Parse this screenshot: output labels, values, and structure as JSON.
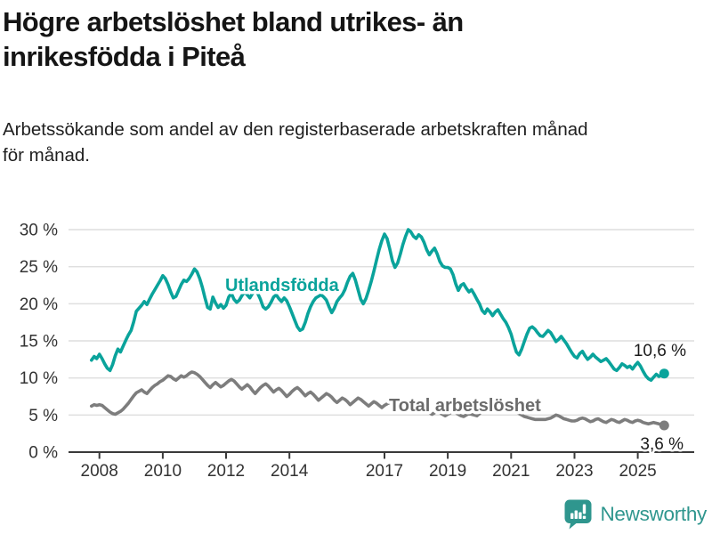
{
  "title": {
    "line1": "Högre arbetslöshet bland utrikes- än",
    "line2": "inrikesfödda i Piteå"
  },
  "subtitle": {
    "line1": "Arbetssökande som andel av den registerbaserade arbetskraften månad",
    "line2": "för månad."
  },
  "branding": {
    "name": "Newsworthy",
    "icon": "newsworthy-chart-bubble-icon",
    "color": "#2f968e"
  },
  "colors": {
    "foreign_born_line": "#0aa39b",
    "total_line": "#7d7d7d",
    "total_label": "#6b6b6b",
    "grid": "#dedede",
    "axis": "#3a3a3a",
    "tick_text": "#333333"
  },
  "chart_data": {
    "type": "line",
    "title": "Högre arbetslöshet bland utrikes- än inrikesfödda i Piteå",
    "subtitle": "Arbetssökande som andel av den registerbaserade arbetskraften månad för månad.",
    "xlabel": "",
    "ylabel": "",
    "grid": "horizontal",
    "ylim": [
      0,
      31
    ],
    "y_axis": {
      "ticks": [
        0,
        5,
        10,
        15,
        20,
        25,
        30
      ],
      "labels": [
        "0 %",
        "5 %",
        "10 %",
        "15 %",
        "20 %",
        "25 %",
        "30 %"
      ]
    },
    "x_axis": {
      "ticks": [
        2008,
        2010,
        2012,
        2014,
        2017,
        2019,
        2021,
        2023,
        2025
      ],
      "labels": [
        "2008",
        "2010",
        "2012",
        "2014",
        "2017",
        "2019",
        "2021",
        "2023",
        "2025"
      ],
      "unit": "year-month",
      "start": 2007.75,
      "end": 2025.9167
    },
    "series": [
      {
        "name": "Utlandsfödda",
        "color": "#0aa39b",
        "end_label": "10,6 %",
        "end_value": 10.6,
        "start": 2007.75,
        "step_years": 0.08333,
        "values": [
          12.4,
          12.9,
          12.6,
          13.2,
          12.6,
          11.9,
          11.3,
          11.0,
          11.8,
          13.0,
          13.9,
          13.5,
          14.3,
          15.1,
          15.8,
          16.4,
          17.6,
          19.0,
          19.4,
          19.8,
          20.3,
          19.9,
          20.6,
          21.3,
          21.9,
          22.5,
          23.1,
          23.8,
          23.4,
          22.6,
          21.6,
          20.8,
          21.0,
          21.8,
          22.6,
          23.2,
          23.0,
          23.4,
          24.0,
          24.7,
          24.3,
          23.4,
          22.2,
          20.8,
          19.5,
          19.3,
          20.9,
          20.1,
          19.5,
          19.9,
          19.4,
          19.8,
          20.9,
          21.4,
          20.6,
          20.2,
          20.5,
          21.1,
          21.6,
          21.2,
          20.8,
          21.4,
          21.8,
          21.4,
          20.6,
          19.6,
          19.3,
          19.6,
          20.2,
          20.9,
          21.2,
          20.7,
          20.3,
          20.8,
          20.4,
          19.6,
          18.7,
          17.8,
          16.9,
          16.4,
          16.6,
          17.5,
          18.7,
          19.6,
          20.3,
          20.8,
          21.0,
          21.2,
          20.9,
          20.5,
          19.6,
          18.8,
          19.4,
          20.3,
          20.8,
          21.2,
          21.9,
          22.9,
          23.7,
          24.1,
          23.2,
          21.9,
          20.6,
          20.0,
          20.7,
          21.8,
          23.0,
          24.4,
          25.9,
          27.3,
          28.5,
          29.4,
          28.8,
          27.4,
          25.8,
          24.9,
          25.5,
          26.7,
          28.0,
          29.1,
          30.0,
          29.7,
          29.1,
          28.8,
          29.3,
          29.0,
          28.3,
          27.3,
          26.6,
          27.1,
          27.5,
          26.7,
          25.7,
          25.1,
          24.9,
          24.9,
          24.7,
          23.9,
          22.7,
          21.8,
          22.5,
          22.7,
          22.1,
          21.6,
          21.9,
          21.3,
          20.6,
          20.0,
          19.1,
          18.7,
          19.3,
          18.9,
          18.4,
          18.9,
          19.2,
          18.6,
          18.0,
          17.5,
          16.8,
          15.9,
          14.6,
          13.5,
          13.1,
          13.9,
          14.9,
          15.9,
          16.7,
          16.9,
          16.6,
          16.1,
          15.7,
          15.6,
          16.0,
          16.4,
          16.1,
          15.5,
          14.9,
          15.2,
          15.6,
          15.1,
          14.6,
          14.0,
          13.4,
          12.9,
          12.7,
          13.3,
          13.6,
          13.0,
          12.5,
          12.8,
          13.2,
          12.8,
          12.5,
          12.2,
          12.4,
          12.6,
          12.2,
          11.7,
          11.2,
          11.0,
          11.4,
          11.9,
          11.7,
          11.4,
          11.6,
          11.2,
          11.7,
          12.1,
          11.6,
          10.9,
          10.3,
          9.9,
          9.7,
          10.1,
          10.5,
          10.2,
          10.4,
          10.6
        ]
      },
      {
        "name": "Total arbetslöshet",
        "color": "#7d7d7d",
        "end_label": "3,6 %",
        "end_value": 3.6,
        "start": 2007.75,
        "step_years": 0.08333,
        "values": [
          6.2,
          6.4,
          6.3,
          6.4,
          6.3,
          6.0,
          5.7,
          5.4,
          5.2,
          5.1,
          5.3,
          5.5,
          5.8,
          6.2,
          6.6,
          7.1,
          7.6,
          8.0,
          8.2,
          8.4,
          8.1,
          7.9,
          8.3,
          8.7,
          9.0,
          9.2,
          9.5,
          9.7,
          10.0,
          10.3,
          10.2,
          9.9,
          9.7,
          10.0,
          10.3,
          10.1,
          10.3,
          10.6,
          10.8,
          10.7,
          10.5,
          10.2,
          9.8,
          9.4,
          9.0,
          8.7,
          9.1,
          9.4,
          9.1,
          8.8,
          9.0,
          9.3,
          9.6,
          9.8,
          9.6,
          9.2,
          8.8,
          8.5,
          8.8,
          9.1,
          8.8,
          8.3,
          7.9,
          8.3,
          8.7,
          9.0,
          9.2,
          8.9,
          8.5,
          8.1,
          8.4,
          8.6,
          8.3,
          7.9,
          7.5,
          7.8,
          8.2,
          8.5,
          8.7,
          8.4,
          8.0,
          7.6,
          7.9,
          8.1,
          7.8,
          7.4,
          7.0,
          7.3,
          7.6,
          7.9,
          7.7,
          7.4,
          7.0,
          6.7,
          7.0,
          7.3,
          7.1,
          6.8,
          6.4,
          6.7,
          7.0,
          7.3,
          7.1,
          6.8,
          6.5,
          6.2,
          6.5,
          6.8,
          6.6,
          6.3,
          6.0,
          6.3,
          6.5,
          6.7,
          6.5,
          6.2,
          5.9,
          5.7,
          5.9,
          6.1,
          5.9,
          5.7,
          5.4,
          5.7,
          5.9,
          6.1,
          5.9,
          5.6,
          5.3,
          5.1,
          5.3,
          5.5,
          5.3,
          5.1,
          4.9,
          5.1,
          5.3,
          5.5,
          5.3,
          5.1,
          4.9,
          4.8,
          5.0,
          5.2,
          5.1,
          5.0,
          4.9,
          5.2,
          5.5,
          6.1,
          6.7,
          7.0,
          6.9,
          6.7,
          6.5,
          6.3,
          6.1,
          5.9,
          5.8,
          5.7,
          5.6,
          5.4,
          5.2,
          5.0,
          4.8,
          4.7,
          4.6,
          4.5,
          4.4,
          4.4,
          4.4,
          4.4,
          4.4,
          4.5,
          4.6,
          4.8,
          5.0,
          4.9,
          4.7,
          4.5,
          4.4,
          4.3,
          4.2,
          4.2,
          4.3,
          4.5,
          4.6,
          4.5,
          4.3,
          4.1,
          4.2,
          4.4,
          4.5,
          4.3,
          4.1,
          4.0,
          4.2,
          4.4,
          4.3,
          4.1,
          4.0,
          4.2,
          4.4,
          4.3,
          4.1,
          4.0,
          4.2,
          4.3,
          4.2,
          4.0,
          3.9,
          3.8,
          3.9,
          4.0,
          3.9,
          3.8,
          3.7,
          3.6
        ]
      }
    ]
  }
}
